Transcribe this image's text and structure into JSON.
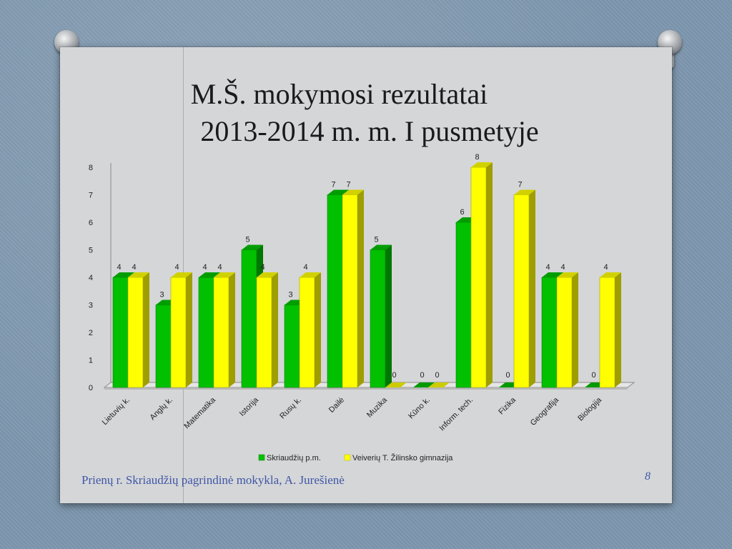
{
  "slide": {
    "title_line1": "M.Š. mokymosi rezultatai",
    "title_line2": "2013-2014 m. m. I pusmetyje",
    "footer": "Prienų r. Skriaudžių pagrindinė mokykla, A. Jurešienė",
    "page_number": "8"
  },
  "chart_data": {
    "type": "bar",
    "categories": [
      "Lietuvių k.",
      "Anglų k.",
      "Matematika",
      "Istorija",
      "Rusų k.",
      "Dailė",
      "Muzika",
      "Kūno k.",
      "Inform. tech.",
      "Fizika",
      "Geografija",
      "Biologija"
    ],
    "series": [
      {
        "name": "Skriaudžių p.m.",
        "values": [
          4,
          3,
          4,
          5,
          3,
          7,
          5,
          0,
          6,
          0,
          4,
          0
        ],
        "color": "#00c000"
      },
      {
        "name": "Veiverių T. Žilinsko gimnazija",
        "values": [
          4,
          4,
          4,
          4,
          4,
          7,
          0,
          0,
          8,
          7,
          4,
          4
        ],
        "color": "#ffff00"
      }
    ],
    "ylim": [
      0,
      8
    ],
    "yticks": [
      0,
      1,
      2,
      3,
      4,
      5,
      6,
      7,
      8
    ],
    "legend_position": "bottom",
    "style": "3d-clustered-column",
    "data_labels": true
  }
}
